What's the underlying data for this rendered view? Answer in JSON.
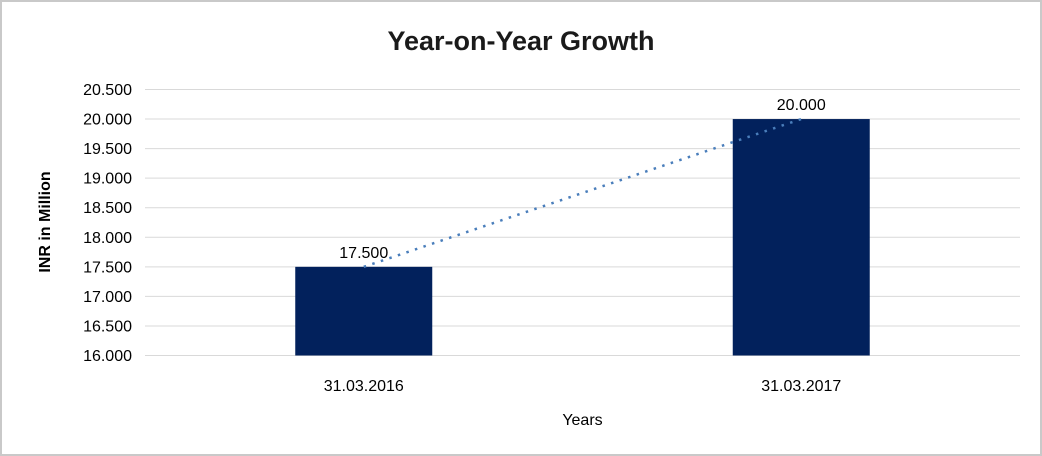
{
  "frame": {
    "border_color": "#c9c9c9",
    "background": "#ffffff"
  },
  "chart_data": {
    "type": "bar",
    "title": "Year-on-Year Growth",
    "xlabel": "Years",
    "ylabel": "INR in Million",
    "categories": [
      "31.03.2016",
      "31.03.2017"
    ],
    "series": [
      {
        "name": "INR in Million bars",
        "type": "bar",
        "values": [
          17500,
          20000
        ],
        "data_labels": [
          "17.500",
          "20.000"
        ],
        "color": "#02215c"
      },
      {
        "name": "trend line",
        "type": "line",
        "line_style": "dotted",
        "values": [
          17500,
          20000
        ],
        "color": "#4a7ebb"
      }
    ],
    "ylim": [
      16000,
      20500
    ],
    "ytick_step": 500,
    "ytick_labels": [
      "16.000",
      "16.500",
      "17.000",
      "17.500",
      "18.000",
      "18.500",
      "19.000",
      "19.500",
      "20.000",
      "20.500"
    ],
    "grid": true,
    "gridline_color": "#d9d9d9",
    "legend_position": "none",
    "text_color": "#000000"
  }
}
